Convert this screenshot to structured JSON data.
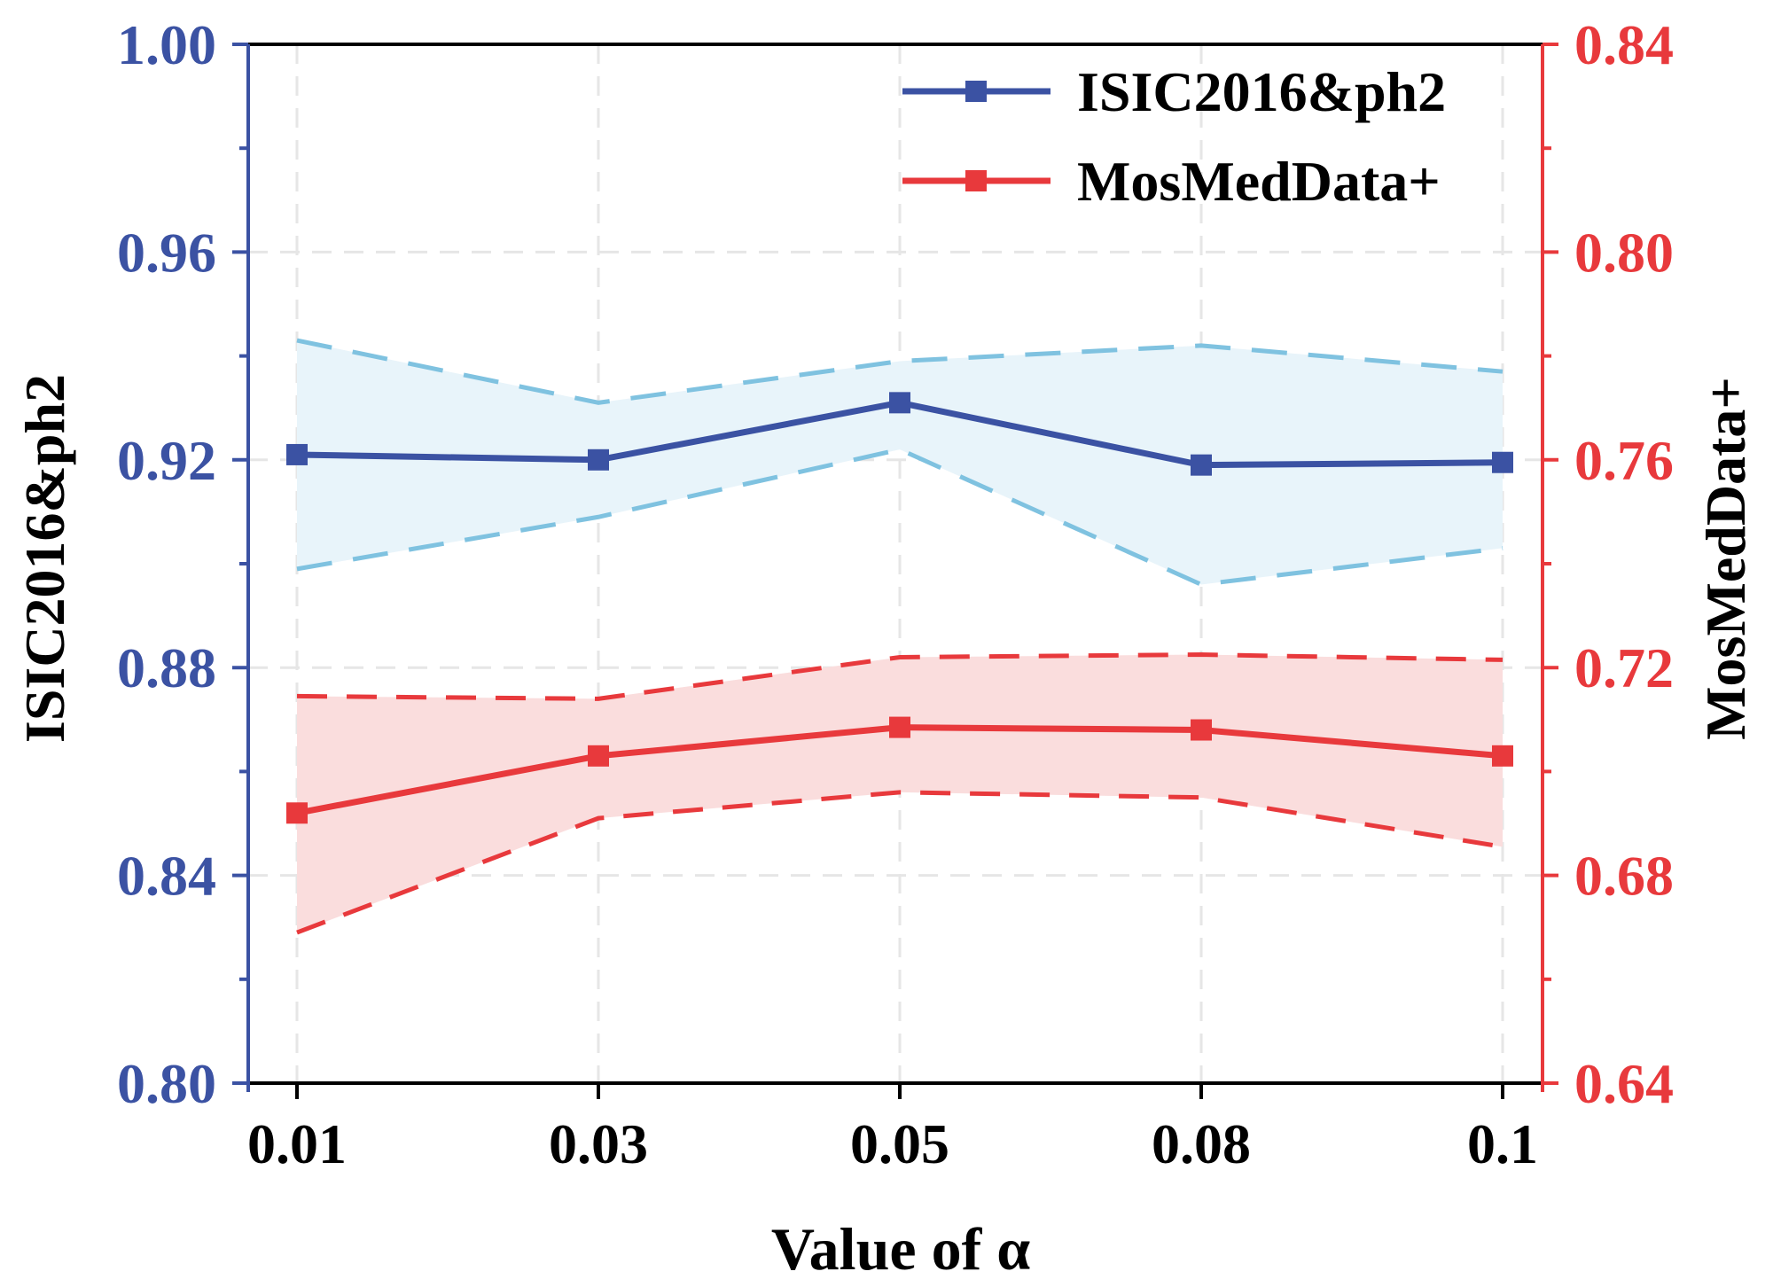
{
  "chart_data": {
    "type": "line",
    "xlabel": "Value of  α",
    "x_categories": [
      "0.01",
      "0.03",
      "0.05",
      "0.08",
      "0.1"
    ],
    "left_axis": {
      "label": "ISIC2016&ph2",
      "ylim": [
        0.8,
        1.0
      ],
      "ticks": [
        "0.80",
        "0.84",
        "0.88",
        "0.92",
        "0.96",
        "1.00"
      ],
      "color": "#3b52a3"
    },
    "right_axis": {
      "label": "MosMedData+",
      "ylim": [
        0.64,
        0.84
      ],
      "ticks": [
        "0.64",
        "0.68",
        "0.72",
        "0.76",
        "0.80",
        "0.84"
      ],
      "color": "#e8393c"
    },
    "series": [
      {
        "name": "ISIC2016&ph2",
        "axis": "left",
        "color": "#3b52a3",
        "band_color": "#7fc2e0",
        "band_fill": "#e8f4fa",
        "values": [
          0.921,
          0.92,
          0.931,
          0.919,
          0.9195
        ],
        "upper": [
          0.943,
          0.931,
          0.939,
          0.942,
          0.937
        ],
        "lower": [
          0.899,
          0.909,
          0.922,
          0.896,
          0.903
        ]
      },
      {
        "name": "MosMedData+",
        "axis": "right",
        "color": "#e8393c",
        "band_color": "#e8393c",
        "band_fill": "#fadddd",
        "values": [
          0.692,
          0.703,
          0.7085,
          0.708,
          0.703
        ],
        "upper": [
          0.7145,
          0.714,
          0.722,
          0.7225,
          0.7215
        ],
        "lower": [
          0.669,
          0.691,
          0.696,
          0.695,
          0.6855
        ]
      }
    ],
    "legend_position": "top-right",
    "grid": true
  }
}
